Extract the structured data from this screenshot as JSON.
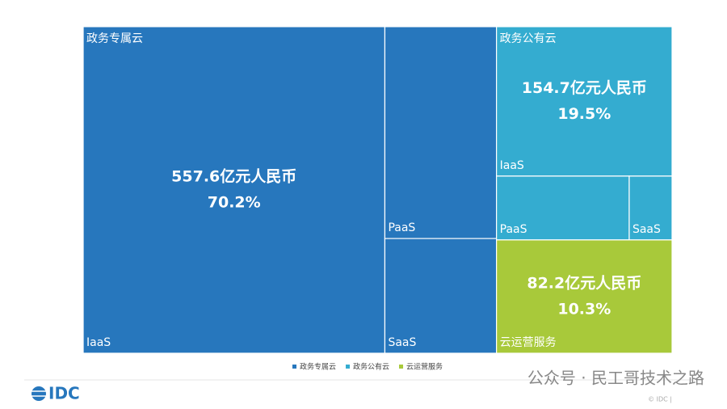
{
  "chart_data": {
    "type": "treemap",
    "series": [
      {
        "name": "政务专属云",
        "color": "#2777bd",
        "value": 557.6,
        "value_label": "557.6亿元人民币",
        "share": 70.2,
        "share_label": "70.2%",
        "children": [
          {
            "name": "IaaS",
            "value": 407.0
          },
          {
            "name": "PaaS",
            "value": 97.7
          },
          {
            "name": "SaaS",
            "value": 52.9
          }
        ]
      },
      {
        "name": "政务公有云",
        "color": "#34acd0",
        "value": 154.7,
        "value_label": "154.7亿元人民币",
        "share": 19.5,
        "share_label": "19.5%",
        "children": [
          {
            "name": "IaaS",
            "value": 108.4
          },
          {
            "name": "PaaS",
            "value": 35.0
          },
          {
            "name": "SaaS",
            "value": 11.3
          }
        ]
      },
      {
        "name": "云运营服务",
        "color": "#a8c93a",
        "value": 82.2,
        "value_label": "82.2亿元人民币",
        "share": 10.3,
        "share_label": "10.3%",
        "children": []
      }
    ]
  },
  "footer": {
    "logo": "IDC",
    "copyright": "© IDC |",
    "watermark": "公众号 · 民工哥技术之路"
  }
}
